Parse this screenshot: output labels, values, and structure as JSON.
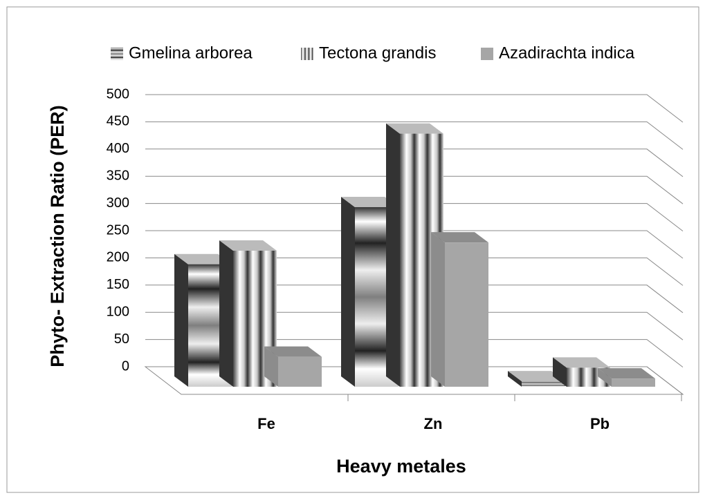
{
  "chart_data": {
    "type": "bar3d",
    "y_label": "Phyto- Extraction Ratio (PER)",
    "x_label": "Heavy metales",
    "categories": [
      "Fe",
      "Zn",
      "Pb"
    ],
    "series": [
      {
        "name": "Gmelina arborea",
        "color": "#7f7f7f",
        "values": [
          225,
          330,
          10
        ]
      },
      {
        "name": "Tectona grandis",
        "color": "#c8c8c8",
        "values": [
          250,
          465,
          35
        ]
      },
      {
        "name": "Azadirachta indica",
        "color": "#a6a6a6",
        "values": [
          55,
          265,
          15
        ]
      }
    ],
    "ylim": [
      0,
      500
    ],
    "yticks": [
      0,
      50,
      100,
      150,
      200,
      250,
      300,
      350,
      400,
      450,
      500
    ],
    "grid": true,
    "legend": "top"
  }
}
